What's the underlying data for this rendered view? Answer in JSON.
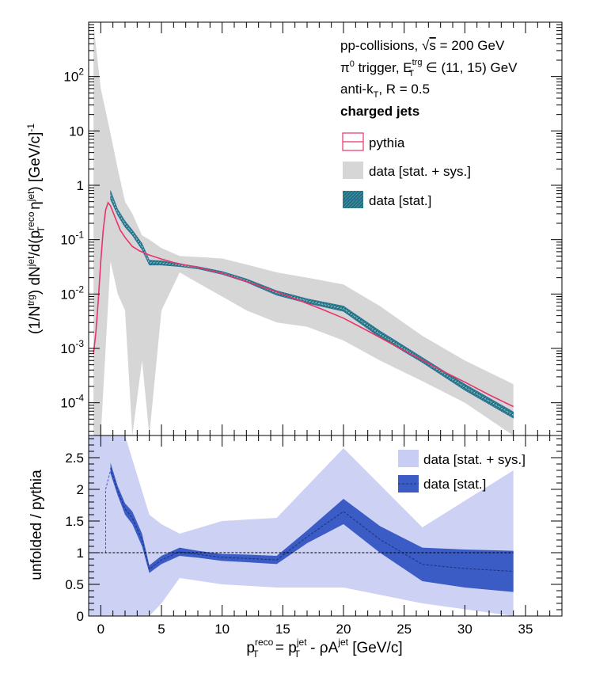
{
  "chart_data": [
    {
      "type": "line",
      "panel": "top",
      "yscale": "log",
      "ylabel": "(1/N^trg) dN^jet/d(p_T^reco η^jet) [GeV/c]^-1",
      "ylim": [
        2.5e-05,
        1000
      ],
      "xlim": [
        -1,
        38
      ],
      "ytick_labels": [
        "10^-4",
        "10^-3",
        "10^-2",
        "10^-1",
        "1",
        "10",
        "10^2"
      ],
      "annotations": {
        "line1": "pp-collisions, √s = 200 GeV",
        "line2": "π0 trigger, E_T^trg ∈ (11, 15) GeV",
        "line3": "anti-k_T, R = 0.5",
        "line4": "charged jets"
      },
      "legend": {
        "placement": "top-right",
        "entries": [
          "pythia",
          "data [stat. + sys.]",
          "data [stat.]"
        ]
      },
      "series": [
        {
          "name": "pythia",
          "color": "#e8336b",
          "x": [
            -0.6,
            -0.4,
            -0.2,
            0,
            0.2,
            0.4,
            0.6,
            0.8,
            1.2,
            1.6,
            2,
            2.6,
            3.2,
            4,
            5,
            6,
            7,
            8,
            10,
            12,
            14,
            16,
            18,
            20,
            22,
            24,
            26,
            28,
            30,
            32,
            34
          ],
          "y": [
            0.0008,
            0.002,
            0.008,
            0.04,
            0.15,
            0.35,
            0.48,
            0.42,
            0.25,
            0.15,
            0.11,
            0.075,
            0.062,
            0.052,
            0.044,
            0.038,
            0.034,
            0.031,
            0.024,
            0.017,
            0.012,
            0.0082,
            0.0055,
            0.0036,
            0.0021,
            0.0012,
            0.0007,
            0.0004,
            0.00024,
            0.00014,
            8.5e-05
          ]
        },
        {
          "name": "data [stat.]",
          "color": "#2f6ca3",
          "x": [
            0.8,
            1.4,
            2,
            2.6,
            3.4,
            4,
            5,
            6.5,
            8,
            10,
            12,
            14.5,
            17,
            20,
            23,
            26.5,
            30,
            34
          ],
          "y_low": [
            0.55,
            0.28,
            0.17,
            0.12,
            0.065,
            0.034,
            0.034,
            0.032,
            0.029,
            0.023,
            0.0165,
            0.0095,
            0.0068,
            0.0048,
            0.0016,
            0.00055,
            0.00017,
            5.2e-05
          ],
          "y_high": [
            0.8,
            0.36,
            0.22,
            0.15,
            0.085,
            0.042,
            0.041,
            0.036,
            0.032,
            0.026,
            0.019,
            0.0115,
            0.0082,
            0.006,
            0.0021,
            0.00068,
            0.00022,
            6.8e-05
          ]
        },
        {
          "name": "data [stat. + sys.]",
          "color": "#d6d6d6",
          "x": [
            -0.6,
            0,
            0.8,
            1.4,
            2,
            2.6,
            3.4,
            4,
            5,
            6.5,
            8,
            10,
            12,
            14.5,
            17,
            20,
            23,
            26.5,
            30,
            34
          ],
          "y_low": [
            2.5e-05,
            2.5e-05,
            0.04,
            0.01,
            0.005,
            2.5e-05,
            0.0006,
            2.5e-05,
            0.005,
            0.025,
            0.016,
            0.009,
            0.005,
            0.003,
            0.0025,
            0.0014,
            0.0006,
            0.00025,
            0.0001,
            2.5e-05
          ],
          "y_high": [
            900,
            60,
            9,
            2,
            0.5,
            0.3,
            0.12,
            0.1,
            0.07,
            0.05,
            0.048,
            0.045,
            0.035,
            0.025,
            0.02,
            0.015,
            0.006,
            0.0017,
            0.0006,
            0.00022
          ]
        }
      ]
    },
    {
      "type": "line",
      "panel": "bottom",
      "ylabel": "unfolded / pythia",
      "xlabel": "p_T^reco = p_T^jet - ρA^jet [GeV/c]",
      "ylim": [
        0,
        2.85
      ],
      "xlim": [
        -1,
        38
      ],
      "x_ticks": [
        0,
        5,
        10,
        15,
        20,
        25,
        30,
        35
      ],
      "x_tick_labels": [
        "0",
        "5",
        "10",
        "15",
        "20",
        "25",
        "30",
        "35"
      ],
      "y_ticks": [
        0,
        0.5,
        1,
        1.5,
        2,
        2.5
      ],
      "y_tick_labels": [
        "0",
        "0.5",
        "1",
        "1.5",
        "2",
        "2.5"
      ],
      "reference_line": 1,
      "legend": {
        "placement": "top-right",
        "entries": [
          "data [stat. + sys.]",
          "data [stat.]"
        ]
      },
      "series": [
        {
          "name": "data [stat. + sys.]",
          "color": "#c8cdf4",
          "x": [
            -1,
            0,
            1,
            2,
            4,
            5,
            6.5,
            10,
            14.5,
            20,
            26.5,
            34
          ],
          "y_low": [
            0,
            0,
            0,
            0,
            0,
            0.2,
            0.6,
            0.5,
            0.45,
            0.45,
            0.2,
            0
          ],
          "y_high": [
            2.85,
            2.85,
            2.85,
            2.85,
            1.6,
            1.45,
            1.3,
            1.5,
            1.55,
            2.65,
            1.4,
            2.3
          ]
        },
        {
          "name": "data [stat.]",
          "color": "#3b5cc4",
          "x": [
            0.8,
            1.4,
            2,
            2.6,
            3.4,
            4,
            5,
            6.5,
            8,
            10,
            12,
            14.5,
            17,
            20,
            23,
            26.5,
            30,
            34
          ],
          "y_low": [
            2.25,
            1.9,
            1.6,
            1.45,
            1.1,
            0.68,
            0.82,
            0.95,
            0.92,
            0.87,
            0.85,
            0.82,
            1.15,
            1.45,
            1.0,
            0.55,
            0.45,
            0.38
          ],
          "y_high": [
            2.42,
            2.05,
            1.78,
            1.65,
            1.3,
            0.8,
            0.95,
            1.08,
            1.03,
            0.98,
            0.97,
            0.95,
            1.35,
            1.85,
            1.42,
            1.08,
            1.05,
            1.03
          ]
        },
        {
          "name": "stat-left-edge",
          "color": "#3b5cc4",
          "x": [
            0.4,
            0.4,
            0.8
          ],
          "y": [
            1.0,
            2.0,
            2.3
          ]
        }
      ]
    }
  ]
}
